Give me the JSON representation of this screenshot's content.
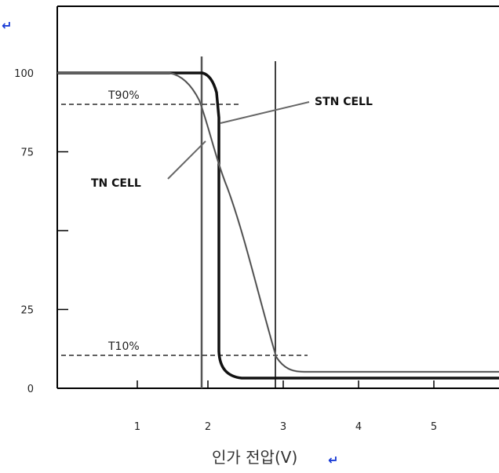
{
  "chart_data": {
    "type": "line",
    "title": "",
    "xlabel": "인가 전압(V)",
    "ylabel": "",
    "xlim": [
      0,
      5.7
    ],
    "ylim": [
      0,
      105
    ],
    "x_ticks": [
      1,
      2,
      3,
      4,
      5
    ],
    "x_tick_labels": [
      "1",
      "2",
      "3",
      "4",
      "5"
    ],
    "y_ticks": [
      0,
      25,
      50,
      75,
      100
    ],
    "y_tick_labels": [
      "0",
      "25",
      "",
      "75",
      "100"
    ],
    "series": [
      {
        "name": "STN CELL",
        "points": [
          [
            0,
            100
          ],
          [
            1.85,
            100
          ],
          [
            1.95,
            98
          ],
          [
            2.02,
            93
          ],
          [
            2.07,
            85
          ],
          [
            2.08,
            60
          ],
          [
            2.09,
            30
          ],
          [
            2.1,
            12
          ],
          [
            2.15,
            7
          ],
          [
            2.25,
            3.5
          ],
          [
            2.4,
            3
          ],
          [
            5.7,
            3
          ]
        ]
      },
      {
        "name": "TN CELL",
        "points": [
          [
            0,
            100
          ],
          [
            1.5,
            100
          ],
          [
            1.6,
            98
          ],
          [
            1.7,
            95
          ],
          [
            1.8,
            90
          ],
          [
            2.0,
            78
          ],
          [
            2.3,
            60
          ],
          [
            2.6,
            30
          ],
          [
            2.85,
            12
          ],
          [
            3.0,
            7
          ],
          [
            3.2,
            5
          ],
          [
            5.7,
            5
          ]
        ]
      }
    ],
    "thresholds": [
      {
        "label": "T90%",
        "y": 90
      },
      {
        "label": "T10%",
        "y": 10
      }
    ],
    "vlines": [
      1.8,
      2.8
    ],
    "annotations": [
      {
        "text": "STN CELL",
        "series": "STN CELL"
      },
      {
        "text": "TN CELL",
        "series": "TN CELL"
      }
    ]
  },
  "marks": {
    "top": "↵",
    "xlabel": "↵"
  },
  "colors": {
    "axis": "#000000",
    "stn_line": "#111111",
    "tn_line": "#7a7a7a",
    "mark": "#1a3cd6"
  }
}
